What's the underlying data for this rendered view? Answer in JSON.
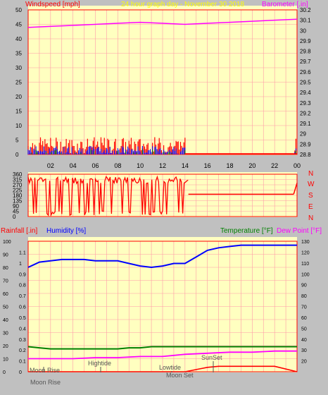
{
  "colors": {
    "background": "#c0c0c0",
    "plot_bg": "#ffffc0",
    "grid": "#ff9aa8",
    "wind": "#ff0000",
    "gust": "#0000ff",
    "wind_green": "#008000",
    "barometer": "#ff00ff",
    "direction": "#ff0000",
    "rain": "#ff0000",
    "humidity": "#0000ff",
    "temperature": "#008000",
    "dewpoint": "#ff00ff",
    "axis_text": "#000000",
    "title_text": "#ffff00"
  },
  "header": {
    "left_label": "Windspeed [mph]",
    "center_title": "24 hour graph day - November 30 2018",
    "right_label": "Barometer [.in]"
  },
  "bottom_header": {
    "rain_label": "Rainfall [.in]",
    "humidity_label": "Humidity [%]",
    "temp_label": "Temperature [°F]",
    "dew_label": "Dew Point [°F]"
  },
  "compass": [
    "N",
    "W",
    "S",
    "E",
    "N"
  ],
  "x_ticks": [
    "02",
    "04",
    "06",
    "08",
    "10",
    "12",
    "14",
    "16",
    "18",
    "20",
    "22",
    "00"
  ],
  "events": {
    "moon_rise_top": "Moon Rise",
    "moon_rise_axis": "Moon Rise",
    "hightide": "Hightide",
    "lowtide": "Lowtide",
    "moon_set": "Moon Set",
    "sunset": "SunSet"
  },
  "chart_data": [
    {
      "type": "line",
      "panel": "wind_barometer",
      "title": "24 hour graph day - November 30 2018",
      "x_range_hours": [
        0,
        24
      ],
      "y_left": {
        "label": "Windspeed [mph]",
        "range": [
          0,
          50
        ],
        "ticks": [
          0,
          5,
          10,
          15,
          20,
          25,
          30,
          35,
          40,
          45,
          50
        ]
      },
      "y_right": {
        "label": "Barometer [.in]",
        "range": [
          28.8,
          30.2
        ],
        "ticks": [
          "28.8",
          "28.9",
          "29",
          "29.1",
          "29.2",
          "29.3",
          "29.4",
          "29.5",
          "29.6",
          "29.7",
          "29.8",
          "29.9",
          "30",
          "30.1",
          "30.2"
        ]
      },
      "barometer": {
        "x": [
          0,
          2,
          4,
          6,
          8,
          10,
          12,
          14,
          16,
          18,
          20,
          22,
          24
        ],
        "y": [
          30.03,
          30.04,
          30.05,
          30.06,
          30.07,
          30.08,
          30.07,
          30.06,
          30.07,
          30.08,
          30.09,
          30.1,
          30.11
        ]
      },
      "wind_gust_max_mph": 6,
      "wind_avg_max_mph": 3
    },
    {
      "type": "line",
      "panel": "wind_direction",
      "y_range": [
        0,
        360
      ],
      "y_ticks": [
        0,
        45,
        90,
        135,
        180,
        225,
        270,
        315,
        360
      ],
      "steady_after_hour_14": {
        "x": [
          14.3,
          23.7
        ],
        "y": [
          190,
          190
        ]
      },
      "end_value": {
        "x": [
          23.7,
          24
        ],
        "y": [
          190,
          285
        ]
      }
    },
    {
      "type": "line",
      "panel": "rain_humidity_temperature",
      "y_left_rain": {
        "label": "Rainfall [.in]",
        "range": [
          0,
          1.2
        ],
        "ticks": [
          "0",
          "0.1",
          "0.2",
          "0.3",
          "0.4",
          "0.5",
          "0.6",
          "0.7",
          "0.8",
          "0.9",
          "1",
          "1.1"
        ]
      },
      "y_left_humidity": {
        "label": "Humidity [%]",
        "range": [
          0,
          100
        ],
        "ticks": [
          0,
          10,
          20,
          30,
          40,
          50,
          60,
          70,
          80,
          90,
          100
        ]
      },
      "y_right_temp": {
        "label": "Temperature [°F]",
        "range": [
          10,
          130
        ],
        "ticks": [
          20,
          30,
          40,
          50,
          60,
          70,
          80,
          90,
          100,
          110,
          120,
          130
        ]
      },
      "humidity": {
        "name": "Humidity [%]",
        "x": [
          0,
          0.5,
          1,
          2,
          3,
          4,
          5,
          6,
          7,
          8,
          9,
          10,
          11,
          12,
          13,
          14,
          15,
          16,
          17,
          18,
          19,
          20,
          21,
          22,
          23,
          24
        ],
        "y": [
          80,
          82,
          84,
          85,
          86,
          86,
          86,
          85,
          85,
          85,
          83,
          81,
          80,
          81,
          83,
          83,
          88,
          93,
          95,
          96,
          97,
          97,
          97,
          97,
          97,
          97
        ]
      },
      "temperature": {
        "name": "Temperature [°F]",
        "x": [
          0,
          1,
          2,
          3,
          4,
          5,
          6,
          7,
          8,
          9,
          10,
          11,
          12,
          13,
          14,
          15,
          16,
          17,
          18,
          19,
          20,
          21,
          22,
          23,
          24
        ],
        "y": [
          33,
          32,
          31,
          31,
          31,
          31,
          31,
          31,
          31,
          32,
          32,
          33,
          33,
          33,
          33,
          33,
          33,
          33,
          33,
          33,
          33,
          33,
          33,
          33,
          33
        ]
      },
      "dewpoint": {
        "name": "Dew Point [°F]",
        "x": [
          0,
          2,
          4,
          6,
          8,
          10,
          12,
          14,
          16,
          18,
          20,
          22,
          24
        ],
        "y": [
          22,
          22,
          22,
          23,
          23,
          24,
          24,
          26,
          27,
          28,
          28,
          29,
          29
        ]
      },
      "rainfall": {
        "name": "Rainfall [.in]",
        "x": [
          0,
          14,
          14.5,
          15,
          15.5,
          16,
          17,
          18,
          20,
          22,
          24
        ],
        "y": [
          0,
          0,
          0.01,
          0.02,
          0.03,
          0.04,
          0.05,
          0.05,
          0.05,
          0.05,
          0.0
        ]
      }
    }
  ]
}
